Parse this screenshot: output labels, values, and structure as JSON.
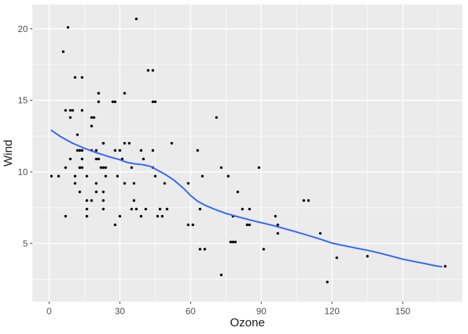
{
  "figure": {
    "background": "#FFFFFF",
    "panel_background": "#EBEBEB",
    "grid_color": "#FFFFFF",
    "point_color": "#000000",
    "tick_label_color": "#4D4D4D",
    "axis_title_color": "#1A1A1A",
    "tick_mark_color": "#333333"
  },
  "chart_data": {
    "type": "scatter",
    "title": "",
    "xlabel": "Ozone",
    "ylabel": "Wind",
    "legend": "none",
    "grid": true,
    "xlim": [
      -7.1,
      175.3
    ],
    "ylim": [
      0.93,
      21.7
    ],
    "x_ticks": [
      0,
      30,
      60,
      90,
      120,
      150
    ],
    "y_ticks": [
      5,
      10,
      15,
      20
    ],
    "x_minor_ticks": [
      15,
      45,
      75,
      105,
      135,
      165
    ],
    "y_minor_ticks": [
      2.5,
      7.5,
      12.5,
      17.5
    ],
    "points": [
      [
        41,
        7.4
      ],
      [
        36,
        8
      ],
      [
        12,
        12.6
      ],
      [
        18,
        11.5
      ],
      [
        28,
        14.9
      ],
      [
        23,
        8.6
      ],
      [
        19,
        13.8
      ],
      [
        8,
        20.1
      ],
      [
        7,
        6.9
      ],
      [
        16,
        9.7
      ],
      [
        11,
        9.2
      ],
      [
        14,
        10.9
      ],
      [
        18,
        13.2
      ],
      [
        14,
        11.5
      ],
      [
        34,
        12
      ],
      [
        6,
        18.4
      ],
      [
        30,
        11.5
      ],
      [
        11,
        9.7
      ],
      [
        1,
        9.7
      ],
      [
        11,
        16.6
      ],
      [
        4,
        9.7
      ],
      [
        32,
        12
      ],
      [
        23,
        12
      ],
      [
        45,
        14.9
      ],
      [
        115,
        5.7
      ],
      [
        37,
        7.4
      ],
      [
        29,
        9.7
      ],
      [
        71,
        13.8
      ],
      [
        39,
        11.5
      ],
      [
        23,
        8
      ],
      [
        21,
        14.9
      ],
      [
        37,
        20.7
      ],
      [
        20,
        9.2
      ],
      [
        12,
        11.5
      ],
      [
        13,
        10.3
      ],
      [
        135,
        4.1
      ],
      [
        49,
        9.2
      ],
      [
        32,
        9.2
      ],
      [
        64,
        4.6
      ],
      [
        40,
        10.9
      ],
      [
        77,
        5.1
      ],
      [
        97,
        6.3
      ],
      [
        97,
        5.7
      ],
      [
        85,
        7.4
      ],
      [
        10,
        14.3
      ],
      [
        27,
        14.9
      ],
      [
        7,
        14.3
      ],
      [
        48,
        6.9
      ],
      [
        35,
        10.3
      ],
      [
        61,
        6.3
      ],
      [
        79,
        5.1
      ],
      [
        63,
        11.5
      ],
      [
        16,
        6.9
      ],
      [
        80,
        8.6
      ],
      [
        108,
        8
      ],
      [
        20,
        8.6
      ],
      [
        52,
        12
      ],
      [
        82,
        7.4
      ],
      [
        50,
        7.4
      ],
      [
        64,
        7.4
      ],
      [
        59,
        9.2
      ],
      [
        39,
        6.9
      ],
      [
        9,
        13.8
      ],
      [
        16,
        7.4
      ],
      [
        78,
        6.9
      ],
      [
        35,
        7.4
      ],
      [
        66,
        4.6
      ],
      [
        122,
        4
      ],
      [
        89,
        10.3
      ],
      [
        110,
        8
      ],
      [
        44,
        11.5
      ],
      [
        28,
        11.5
      ],
      [
        65,
        9.7
      ],
      [
        22,
        10.3
      ],
      [
        59,
        6.3
      ],
      [
        23,
        7.4
      ],
      [
        31,
        10.9
      ],
      [
        44,
        10.3
      ],
      [
        21,
        15.5
      ],
      [
        9,
        14.3
      ],
      [
        45,
        9.7
      ],
      [
        168,
        3.4
      ],
      [
        73,
        10.3
      ],
      [
        76,
        9.7
      ],
      [
        118,
        2.3
      ],
      [
        84,
        6.3
      ],
      [
        85,
        6.3
      ],
      [
        96,
        6.9
      ],
      [
        78,
        5.1
      ],
      [
        73,
        2.8
      ],
      [
        91,
        4.6
      ],
      [
        47,
        7.4
      ],
      [
        32,
        15.5
      ],
      [
        20,
        10.9
      ],
      [
        23,
        10.3
      ],
      [
        21,
        10.9
      ],
      [
        24,
        9.7
      ],
      [
        44,
        14.9
      ],
      [
        21,
        15.5
      ],
      [
        28,
        6.3
      ],
      [
        9,
        10.9
      ],
      [
        13,
        11.5
      ],
      [
        46,
        6.9
      ],
      [
        18,
        13.8
      ],
      [
        13,
        10.3
      ],
      [
        24,
        10.3
      ],
      [
        16,
        8
      ],
      [
        13,
        8.6
      ],
      [
        23,
        12
      ],
      [
        36,
        9.2
      ],
      [
        7,
        10.3
      ],
      [
        14,
        10.3
      ],
      [
        30,
        6.9
      ],
      [
        14,
        14.3
      ],
      [
        18,
        8
      ],
      [
        20,
        11.5
      ],
      [
        14,
        16.6
      ],
      [
        42,
        17.1
      ],
      [
        44,
        17.1
      ]
    ],
    "smooth_line": {
      "name": "loess-smooth",
      "color": "#3366FF",
      "points": [
        [
          1,
          12.9
        ],
        [
          5,
          12.45
        ],
        [
          10,
          12.0
        ],
        [
          15,
          11.65
        ],
        [
          20,
          11.35
        ],
        [
          25,
          11.08
        ],
        [
          30,
          10.85
        ],
        [
          33,
          10.67
        ],
        [
          36,
          10.57
        ],
        [
          40,
          10.5
        ],
        [
          43,
          10.38
        ],
        [
          46,
          10.12
        ],
        [
          49,
          9.85
        ],
        [
          53,
          9.42
        ],
        [
          57,
          8.85
        ],
        [
          60,
          8.35
        ],
        [
          63,
          7.95
        ],
        [
          66,
          7.68
        ],
        [
          70,
          7.4
        ],
        [
          75,
          7.1
        ],
        [
          80,
          6.87
        ],
        [
          85,
          6.65
        ],
        [
          90,
          6.45
        ],
        [
          95,
          6.25
        ],
        [
          100,
          6.03
        ],
        [
          105,
          5.8
        ],
        [
          110,
          5.55
        ],
        [
          115,
          5.3
        ],
        [
          120,
          5.02
        ],
        [
          125,
          4.85
        ],
        [
          130,
          4.68
        ],
        [
          135,
          4.52
        ],
        [
          140,
          4.33
        ],
        [
          145,
          4.12
        ],
        [
          150,
          3.9
        ],
        [
          155,
          3.73
        ],
        [
          160,
          3.57
        ],
        [
          163,
          3.46
        ],
        [
          166.5,
          3.37
        ]
      ]
    }
  }
}
